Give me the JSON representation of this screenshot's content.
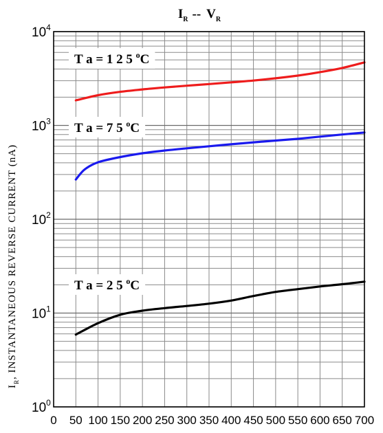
{
  "chart_data": {
    "type": "line",
    "title": {
      "main": "I",
      "main_sub": "R",
      "sep": "--",
      "second": "V",
      "second_sub": "R"
    },
    "ylabel": {
      "main": "I",
      "sub": "R",
      "rest": ", INSTANTANEOUS  REVERSE  CURRENT  (nA)"
    },
    "xlabel": "",
    "x_ticks": [
      "0",
      "50",
      "100",
      "150",
      "200",
      "250",
      "300",
      "350",
      "400",
      "450",
      "500",
      "550",
      "600",
      "650",
      "700"
    ],
    "xlim": [
      0,
      700
    ],
    "y_scale": "log",
    "ylim": [
      1,
      10000
    ],
    "y_ticks": [
      {
        "base": "10",
        "exp": "0",
        "value": 1
      },
      {
        "base": "10",
        "exp": "1",
        "value": 10
      },
      {
        "base": "10",
        "exp": "2",
        "value": 100
      },
      {
        "base": "10",
        "exp": "3",
        "value": 1000
      },
      {
        "base": "10",
        "exp": "4",
        "value": 10000
      }
    ],
    "grid": true,
    "series": [
      {
        "name": "T a = 1 2 5 °C",
        "label_main": "T a = 1 2 5 ",
        "label_sup": "o",
        "label_end": "C",
        "color": "#ee1c1c",
        "x": [
          50,
          100,
          150,
          200,
          250,
          300,
          350,
          400,
          450,
          500,
          550,
          600,
          650,
          700
        ],
        "y": [
          1850,
          2100,
          2280,
          2420,
          2540,
          2650,
          2760,
          2880,
          3010,
          3180,
          3400,
          3700,
          4100,
          4700
        ]
      },
      {
        "name": "T a = 7 5 °C",
        "label_main": "T a = 7 5 ",
        "label_sup": "o",
        "label_end": "C",
        "color": "#1a1aee",
        "x": [
          50,
          70,
          100,
          150,
          200,
          250,
          300,
          350,
          400,
          450,
          500,
          550,
          600,
          650,
          700
        ],
        "y": [
          265,
          340,
          405,
          460,
          505,
          540,
          570,
          600,
          630,
          660,
          690,
          720,
          760,
          800,
          840
        ]
      },
      {
        "name": "T a = 2 5 °C",
        "label_main": "T a = 2 5 ",
        "label_sup": "o",
        "label_end": "C",
        "color": "#000000",
        "x": [
          50,
          100,
          150,
          200,
          250,
          300,
          350,
          400,
          450,
          500,
          550,
          600,
          650,
          700
        ],
        "y": [
          5.9,
          7.8,
          9.6,
          10.6,
          11.3,
          11.9,
          12.6,
          13.6,
          15.2,
          16.8,
          18.0,
          19.2,
          20.3,
          21.6
        ]
      }
    ]
  }
}
